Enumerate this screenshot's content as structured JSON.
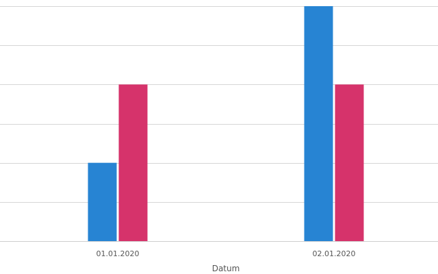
{
  "chart_data": {
    "type": "bar",
    "title": "",
    "xlabel": "Datum",
    "ylabel": "",
    "categories": [
      "01.01.2020",
      "02.01.2020"
    ],
    "series": [
      {
        "values": [
          2,
          6
        ],
        "color": "#2784d3"
      },
      {
        "values": [
          4,
          4
        ],
        "color": "#d6336b"
      }
    ],
    "ylim": [
      0,
      6
    ],
    "grid": true,
    "legend": "none"
  }
}
